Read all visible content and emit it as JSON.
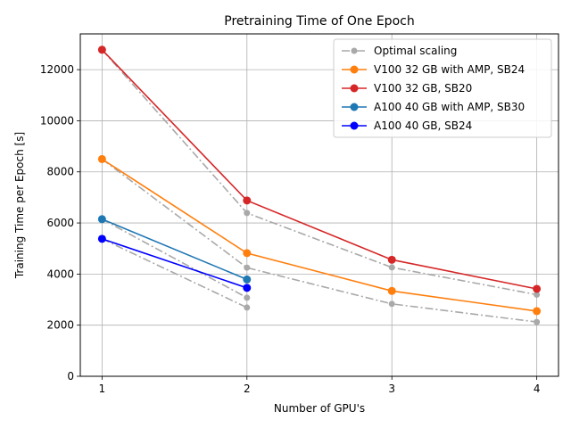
{
  "chart_data": {
    "type": "line",
    "title": "Pretraining Time of One Epoch",
    "xlabel": "Number of GPU's",
    "ylabel": "Training Time per Epoch [s]",
    "xlim": [
      0.85,
      4.15
    ],
    "ylim": [
      0,
      13400
    ],
    "xticks": [
      1,
      2,
      3,
      4
    ],
    "yticks": [
      0,
      2000,
      4000,
      6000,
      8000,
      10000,
      12000
    ],
    "grid": true,
    "legend_position": "top-right",
    "series": [
      {
        "name": "V100 32 GB with AMP, SB24",
        "color": "#ff7f0e",
        "style": "solid",
        "x": [
          1,
          2,
          3,
          4
        ],
        "y": [
          8500,
          4820,
          3340,
          2550
        ]
      },
      {
        "name": "V100 32 GB, SB20",
        "color": "#d62728",
        "style": "solid",
        "x": [
          1,
          2,
          3,
          4
        ],
        "y": [
          12780,
          6880,
          4560,
          3420
        ]
      },
      {
        "name": "A100 40 GB with AMP, SB30",
        "color": "#1f77b4",
        "style": "solid",
        "x": [
          1,
          2
        ],
        "y": [
          6150,
          3790
        ]
      },
      {
        "name": "A100 40 GB, SB24",
        "color": "#0000ff",
        "style": "solid",
        "x": [
          1,
          2
        ],
        "y": [
          5380,
          3460
        ]
      }
    ],
    "optimal_scaling": {
      "name": "Optimal scaling",
      "color": "#a9a9a9",
      "style": "dashdot",
      "lines": [
        {
          "x": [
            1,
            2,
            3,
            4
          ],
          "y": [
            8500,
            4250,
            2833,
            2125
          ]
        },
        {
          "x": [
            1,
            2,
            3,
            4
          ],
          "y": [
            12780,
            6390,
            4260,
            3195
          ]
        },
        {
          "x": [
            1,
            2
          ],
          "y": [
            6150,
            3075
          ]
        },
        {
          "x": [
            1,
            2
          ],
          "y": [
            5380,
            2690
          ]
        }
      ]
    },
    "legend": [
      {
        "name": "Optimal scaling",
        "color": "#a9a9a9",
        "style": "dashdot"
      },
      {
        "name": "V100 32 GB with AMP, SB24",
        "color": "#ff7f0e",
        "style": "solid"
      },
      {
        "name": "V100 32 GB, SB20",
        "color": "#d62728",
        "style": "solid"
      },
      {
        "name": "A100 40 GB with AMP, SB30",
        "color": "#1f77b4",
        "style": "solid"
      },
      {
        "name": "A100 40 GB, SB24",
        "color": "#0000ff",
        "style": "solid"
      }
    ]
  }
}
